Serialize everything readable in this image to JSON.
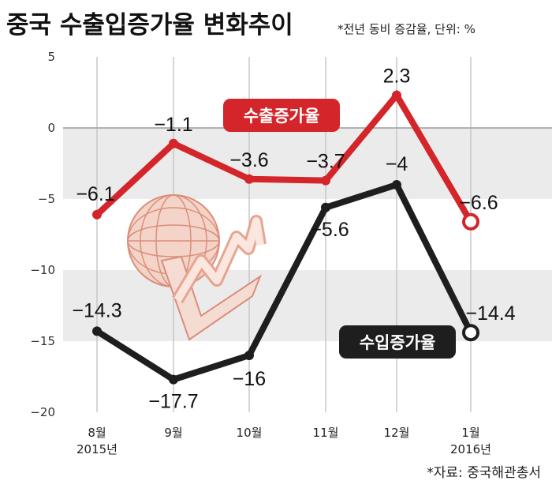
{
  "title": "중국 수출입증가율 변화추이",
  "subtitle": "*전년 동비 증감율, 단위: %",
  "source": "*자료: 중국해관총서",
  "colors": {
    "export": "#d3252a",
    "import": "#1e1e1e",
    "band": "#ebebeb",
    "grid": "#c8c8c8"
  },
  "chart_data": {
    "type": "line",
    "categories": [
      "8월\n2015년",
      "9월",
      "10월",
      "11월",
      "12월",
      "1월\n2016년"
    ],
    "ylim": [
      -20,
      5
    ],
    "yticks": [
      5,
      0,
      -5,
      -10,
      -15,
      -20
    ],
    "ytick_labels": [
      "5",
      "0",
      "−5",
      "−10",
      "−15",
      "−20"
    ],
    "series": [
      {
        "name": "수출증가율",
        "values": [
          -6.1,
          -1.1,
          -3.6,
          -3.7,
          2.3,
          -6.6
        ],
        "labels": [
          "−6.1",
          "−1.1",
          "−3.6",
          "−3.7",
          "2.3",
          "−6.6"
        ]
      },
      {
        "name": "수입증가율",
        "values": [
          -14.3,
          -17.7,
          -16,
          -5.6,
          -4,
          -14.4
        ],
        "labels": [
          "−14.3",
          "−17.7",
          "−16",
          "−5.6",
          "−4",
          "−14.4"
        ]
      }
    ]
  }
}
